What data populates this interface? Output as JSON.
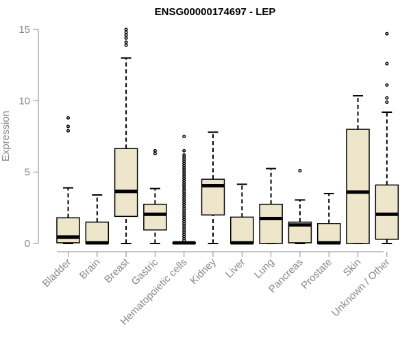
{
  "chart_data": {
    "type": "box",
    "title": "ENSG00000174697 - LEP",
    "xlabel": "",
    "ylabel": "Expression",
    "ylim": [
      0,
      15
    ],
    "yticks": [
      0,
      5,
      10,
      15
    ],
    "colors": {
      "box_fill": "#ede6cb",
      "stroke": "#000000",
      "axis": "#888888"
    },
    "categories": [
      "Bladder",
      "Brain",
      "Breast",
      "Gastric",
      "Hematopoietic cells",
      "Kidney",
      "Liver",
      "Lung",
      "Pancreas",
      "Prostate",
      "Skin",
      "Unknown / Other"
    ],
    "boxes": [
      {
        "name": "Bladder",
        "min": 0,
        "q1": 0.05,
        "median": 0.45,
        "q3": 1.8,
        "max": 3.9,
        "outliers": [
          7.9,
          8.2,
          8.8
        ]
      },
      {
        "name": "Brain",
        "min": 0,
        "q1": 0,
        "median": 0.05,
        "q3": 1.5,
        "max": 3.4,
        "outliers": []
      },
      {
        "name": "Breast",
        "min": 0,
        "q1": 1.9,
        "median": 3.65,
        "q3": 6.65,
        "max": 13.0,
        "outliers": [
          13.9,
          14.1,
          14.4,
          14.6,
          14.8,
          15.0
        ]
      },
      {
        "name": "Gastric",
        "min": 0,
        "q1": 0.95,
        "median": 2.05,
        "q3": 2.75,
        "max": 3.85,
        "outliers": [
          6.3,
          6.5
        ]
      },
      {
        "name": "Hematopoietic cells",
        "min": 0,
        "q1": 0,
        "median": 0.05,
        "q3": 0.05,
        "max": 0.1,
        "outliers": [
          0.2,
          0.35,
          0.5,
          0.65,
          0.8,
          0.95,
          1.1,
          1.25,
          1.4,
          1.55,
          1.7,
          1.85,
          2.0,
          2.15,
          2.3,
          2.45,
          2.6,
          2.75,
          2.9,
          3.05,
          3.2,
          3.35,
          3.5,
          3.65,
          3.8,
          3.95,
          4.1,
          4.25,
          4.4,
          4.55,
          4.7,
          4.85,
          5.0,
          5.15,
          5.3,
          5.45,
          5.6,
          5.75,
          5.9,
          6.05,
          6.2,
          6.5,
          7.5
        ]
      },
      {
        "name": "Kidney",
        "min": 0,
        "q1": 2.0,
        "median": 4.05,
        "q3": 4.5,
        "max": 7.8,
        "outliers": []
      },
      {
        "name": "Liver",
        "min": 0,
        "q1": 0,
        "median": 0.05,
        "q3": 1.85,
        "max": 4.15,
        "outliers": []
      },
      {
        "name": "Lung",
        "min": 0,
        "q1": 0,
        "median": 1.75,
        "q3": 2.75,
        "max": 5.25,
        "outliers": []
      },
      {
        "name": "Pancreas",
        "min": 0,
        "q1": 0.05,
        "median": 1.3,
        "q3": 1.5,
        "max": 3.05,
        "outliers": [
          5.1
        ]
      },
      {
        "name": "Prostate",
        "min": 0,
        "q1": 0,
        "median": 0.05,
        "q3": 1.4,
        "max": 3.5,
        "outliers": []
      },
      {
        "name": "Skin",
        "min": 0,
        "q1": 0,
        "median": 3.6,
        "q3": 8.0,
        "max": 10.35,
        "outliers": []
      },
      {
        "name": "Unknown / Other",
        "min": 0,
        "q1": 0.3,
        "median": 2.05,
        "q3": 4.1,
        "max": 9.2,
        "outliers": [
          9.9,
          10.2,
          11.1,
          12.6,
          14.7
        ]
      }
    ]
  }
}
